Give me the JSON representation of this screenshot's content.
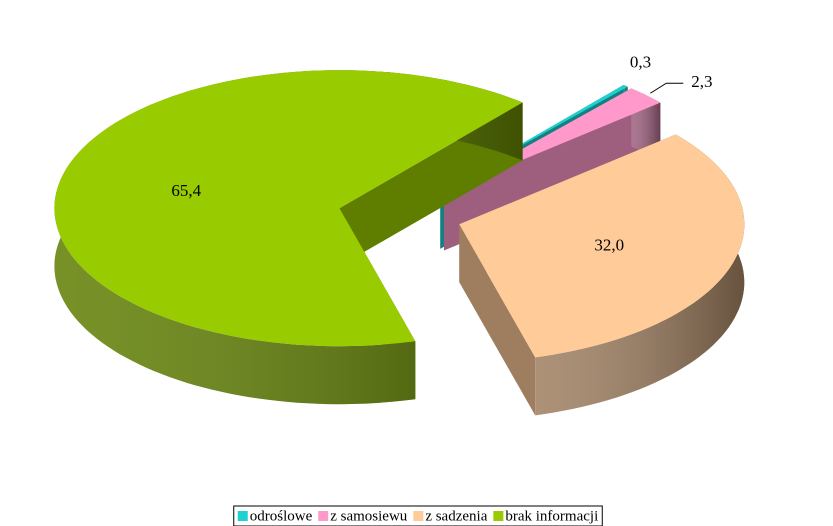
{
  "chart_data": {
    "type": "pie3d",
    "categories": [
      "odroślowe",
      "z samosiewu",
      "z sadzenia",
      "brak informacji"
    ],
    "values": [
      0.3,
      2.3,
      32.0,
      65.4
    ],
    "value_labels": [
      "0,3",
      "2,3",
      "32,0",
      "65,4"
    ],
    "colors": [
      "#1fd0d0",
      "#ff99cc",
      "#ffcc99",
      "#99cc00"
    ],
    "legend": "bottom"
  }
}
